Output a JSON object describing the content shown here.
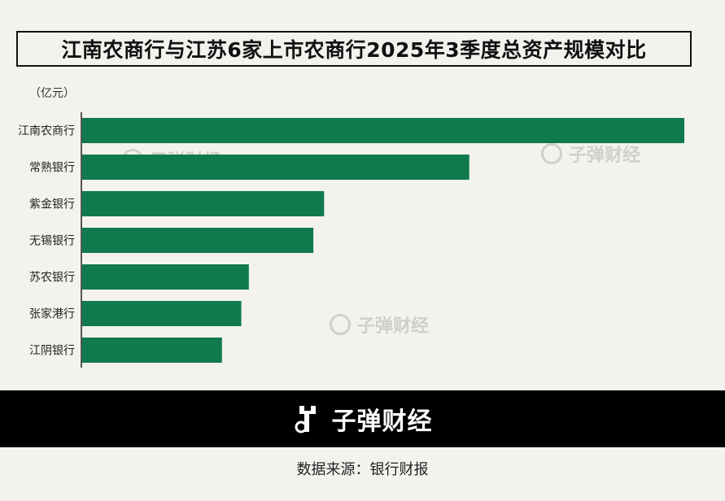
{
  "title": "江南农商行与江苏6家上市农商行2025年3季度总资产规模对比",
  "unit_label": "（亿元）",
  "watermark_text": "子弹财经",
  "brand_name": "子弹财经",
  "source_text": "数据来源：银行财报",
  "colors": {
    "bar": "#107a4d",
    "background": "#f3f2ee",
    "footer": "#000000"
  },
  "icons": {
    "logo": "bullet-logo-icon",
    "watermark": "bullet-watermark-icon"
  },
  "chart_data": {
    "type": "bar",
    "orientation": "horizontal",
    "categories": [
      "江南农商行",
      "常熟银行",
      "紫金银行",
      "无锡银行",
      "苏农银行",
      "张家港行",
      "江阴银行"
    ],
    "values": [
      5600,
      3600,
      2250,
      2150,
      1550,
      1480,
      1300
    ],
    "xlim": [
      0,
      5600
    ],
    "ylabel": "（亿元）",
    "grid": false,
    "legend": false
  }
}
